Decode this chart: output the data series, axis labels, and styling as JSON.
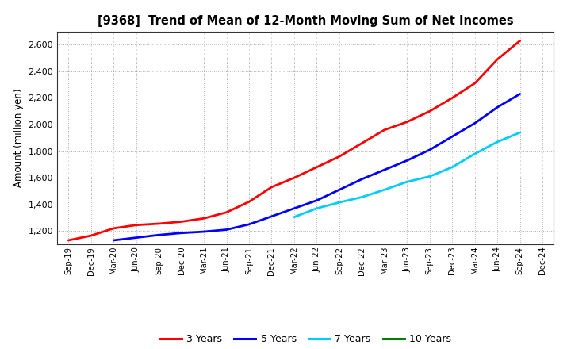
{
  "title": "[9368]  Trend of Mean of 12-Month Moving Sum of Net Incomes",
  "ylabel": "Amount (million yen)",
  "background_color": "#ffffff",
  "grid_color": "#999999",
  "ylim": [
    1100,
    2700
  ],
  "yticks": [
    1200,
    1400,
    1600,
    1800,
    2000,
    2200,
    2400,
    2600
  ],
  "series": {
    "3 Years": {
      "color": "#ff0000",
      "data": {
        "Sep-19": 1130,
        "Dec-19": 1165,
        "Mar-20": 1220,
        "Jun-20": 1245,
        "Sep-20": 1255,
        "Dec-20": 1270,
        "Mar-21": 1295,
        "Jun-21": 1340,
        "Sep-21": 1420,
        "Dec-21": 1530,
        "Mar-22": 1600,
        "Jun-22": 1680,
        "Sep-22": 1760,
        "Dec-22": 1860,
        "Mar-23": 1960,
        "Jun-23": 2020,
        "Sep-23": 2100,
        "Dec-23": 2200,
        "Mar-24": 2310,
        "Jun-24": 2490,
        "Sep-24": 2630
      }
    },
    "5 Years": {
      "color": "#0000ff",
      "data": {
        "Mar-20": 1130,
        "Jun-20": 1150,
        "Sep-20": 1170,
        "Dec-20": 1185,
        "Mar-21": 1195,
        "Jun-21": 1210,
        "Sep-21": 1250,
        "Dec-21": 1310,
        "Mar-22": 1370,
        "Jun-22": 1430,
        "Sep-22": 1510,
        "Dec-22": 1590,
        "Mar-23": 1660,
        "Jun-23": 1730,
        "Sep-23": 1810,
        "Dec-23": 1910,
        "Mar-24": 2010,
        "Jun-24": 2130,
        "Sep-24": 2230
      }
    },
    "7 Years": {
      "color": "#00ccff",
      "data": {
        "Mar-22": 1305,
        "Jun-22": 1370,
        "Sep-22": 1415,
        "Dec-22": 1455,
        "Mar-23": 1510,
        "Jun-23": 1570,
        "Sep-23": 1610,
        "Dec-23": 1680,
        "Mar-24": 1780,
        "Jun-24": 1870,
        "Sep-24": 1940
      }
    },
    "10 Years": {
      "color": "#008000",
      "data": {}
    }
  },
  "xtick_labels": [
    "Sep-19",
    "Dec-19",
    "Mar-20",
    "Jun-20",
    "Sep-20",
    "Dec-20",
    "Mar-21",
    "Jun-21",
    "Sep-21",
    "Dec-21",
    "Mar-22",
    "Jun-22",
    "Sep-22",
    "Dec-22",
    "Mar-23",
    "Jun-23",
    "Sep-23",
    "Dec-23",
    "Mar-24",
    "Jun-24",
    "Sep-24",
    "Dec-24"
  ],
  "legend_labels": [
    "3 Years",
    "5 Years",
    "7 Years",
    "10 Years"
  ],
  "legend_colors": [
    "#ff0000",
    "#0000ff",
    "#00ccff",
    "#008000"
  ]
}
